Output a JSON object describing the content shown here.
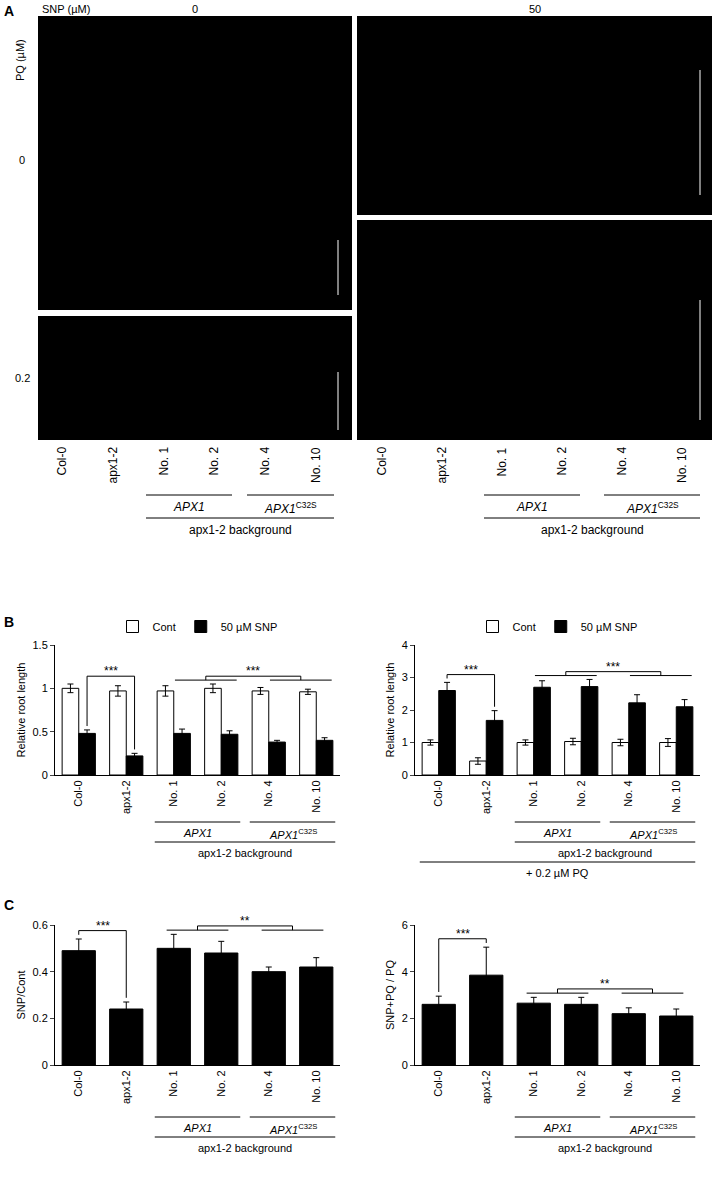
{
  "panel_labels": [
    "A",
    "B",
    "C"
  ],
  "panel_a": {
    "snp_title": "SNP (µM)",
    "snp_levels": [
      "0",
      "50"
    ],
    "pq_title": "PQ (µM)",
    "pq_levels": [
      "0",
      "0.2"
    ],
    "categories": [
      "Col-0",
      "apx1-2",
      "No. 1",
      "No. 2",
      "No. 4",
      "No. 10"
    ],
    "groups": [
      {
        "label": "APX1",
        "members": [
          2,
          3
        ]
      },
      {
        "label": "APX1",
        "sup": "C32S",
        "members": [
          4,
          5
        ]
      }
    ],
    "background": {
      "label": "apx1-2 background",
      "members": [
        2,
        5
      ]
    }
  },
  "chart_data": [
    {
      "type": "bar",
      "categories": [
        "Col-0",
        "apx1-2",
        "No. 1",
        "No. 2",
        "No. 4",
        "No. 10"
      ],
      "series": [
        {
          "name": "Cont",
          "color": "#ffffff",
          "values": [
            1.0,
            0.97,
            0.97,
            1.0,
            0.97,
            0.96
          ],
          "errors": [
            0.05,
            0.06,
            0.06,
            0.05,
            0.04,
            0.03
          ]
        },
        {
          "name": "50 µM SNP",
          "color": "#000000",
          "values": [
            0.48,
            0.22,
            0.48,
            0.47,
            0.38,
            0.4
          ],
          "errors": [
            0.04,
            0.03,
            0.05,
            0.04,
            0.02,
            0.03
          ]
        }
      ],
      "y_label": "Relative root length",
      "ylim": [
        0,
        1.5
      ],
      "yticks": [
        0,
        0.5,
        1,
        1.5
      ],
      "grid": false,
      "legend": "top",
      "groups": [
        {
          "label": "APX1",
          "members": [
            2,
            3
          ]
        },
        {
          "label": "APX1",
          "sup": "C32S",
          "members": [
            4,
            5
          ]
        }
      ],
      "background": {
        "label": "apx1-2 background",
        "members": [
          2,
          5
        ]
      },
      "significance": [
        {
          "series": 1,
          "a": [
            0
          ],
          "b": [
            1
          ],
          "label": "***"
        },
        {
          "series": 1,
          "a": [
            2,
            3
          ],
          "b": [
            4,
            5
          ],
          "label": "***"
        }
      ]
    },
    {
      "type": "bar",
      "categories": [
        "Col-0",
        "apx1-2",
        "No. 1",
        "No. 2",
        "No. 4",
        "No. 10"
      ],
      "series": [
        {
          "name": "Cont",
          "color": "#ffffff",
          "values": [
            1.0,
            0.43,
            1.0,
            1.03,
            1.0,
            1.0
          ],
          "errors": [
            0.08,
            0.1,
            0.08,
            0.1,
            0.1,
            0.12
          ]
        },
        {
          "name": "50 µM SNP",
          "color": "#000000",
          "values": [
            2.6,
            1.68,
            2.7,
            2.72,
            2.22,
            2.1
          ],
          "errors": [
            0.25,
            0.3,
            0.2,
            0.22,
            0.25,
            0.22
          ]
        }
      ],
      "y_label": "Relative root length",
      "ylim": [
        0,
        4
      ],
      "yticks": [
        0,
        1,
        2,
        3,
        4
      ],
      "grid": false,
      "legend": "top",
      "groups": [
        {
          "label": "APX1",
          "members": [
            2,
            3
          ]
        },
        {
          "label": "APX1",
          "sup": "C32S",
          "members": [
            4,
            5
          ]
        }
      ],
      "background": {
        "label": "apx1-2 background",
        "members": [
          2,
          5
        ]
      },
      "note": "+ 0.2 µM PQ",
      "significance": [
        {
          "series": 1,
          "a": [
            0
          ],
          "b": [
            1
          ],
          "label": "***"
        },
        {
          "series": 1,
          "a": [
            2,
            3
          ],
          "b": [
            4,
            5
          ],
          "label": "***"
        }
      ]
    },
    {
      "type": "bar",
      "categories": [
        "Col-0",
        "apx1-2",
        "No. 1",
        "No. 2",
        "No. 4",
        "No. 10"
      ],
      "values": [
        0.49,
        0.24,
        0.5,
        0.48,
        0.4,
        0.42
      ],
      "errors": [
        0.05,
        0.03,
        0.06,
        0.05,
        0.02,
        0.04
      ],
      "color": "#000000",
      "y_label": "SNP/Cont",
      "ylim": [
        0,
        0.6
      ],
      "yticks": [
        0,
        0.2,
        0.4,
        0.6
      ],
      "grid": false,
      "groups": [
        {
          "label": "APX1",
          "members": [
            2,
            3
          ]
        },
        {
          "label": "APX1",
          "sup": "C32S",
          "members": [
            4,
            5
          ]
        }
      ],
      "background": {
        "label": "apx1-2 background",
        "members": [
          2,
          5
        ]
      },
      "significance": [
        {
          "series": 0,
          "a": [
            0
          ],
          "b": [
            1
          ],
          "label": "***"
        },
        {
          "series": 0,
          "a": [
            2,
            3
          ],
          "b": [
            4,
            5
          ],
          "label": "**"
        }
      ]
    },
    {
      "type": "bar",
      "categories": [
        "Col-0",
        "apx1-2",
        "No. 1",
        "No. 2",
        "No. 4",
        "No. 10"
      ],
      "values": [
        2.6,
        3.85,
        2.65,
        2.6,
        2.2,
        2.1
      ],
      "errors": [
        0.35,
        1.2,
        0.25,
        0.3,
        0.25,
        0.3
      ],
      "color": "#000000",
      "y_label": "SNP+PQ / PQ",
      "ylim": [
        0,
        6
      ],
      "yticks": [
        0,
        2,
        4,
        6
      ],
      "grid": false,
      "groups": [
        {
          "label": "APX1",
          "members": [
            2,
            3
          ]
        },
        {
          "label": "APX1",
          "sup": "C32S",
          "members": [
            4,
            5
          ]
        }
      ],
      "background": {
        "label": "apx1-2 background",
        "members": [
          2,
          5
        ]
      },
      "significance": [
        {
          "series": 0,
          "a": [
            0
          ],
          "b": [
            1
          ],
          "label": "***"
        },
        {
          "series": 0,
          "a": [
            2,
            3
          ],
          "b": [
            4,
            5
          ],
          "label": "**"
        }
      ]
    }
  ]
}
